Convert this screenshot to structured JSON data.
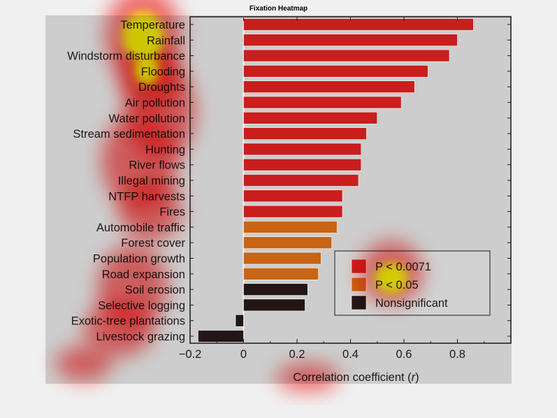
{
  "window": {
    "title": "Fixation Heatmap"
  },
  "chart_data": {
    "type": "bar",
    "orientation": "horizontal",
    "categories": [
      "Temperature",
      "Rainfall",
      "Windstorm disturbance",
      "Flooding",
      "Droughts",
      "Air pollution",
      "Water pollution",
      "Stream sedimentation",
      "Hunting",
      "River flows",
      "Illegal mining",
      "NTFP harvests",
      "Fires",
      "Automobile traffic",
      "Forest cover",
      "Population growth",
      "Road expansion",
      "Soil erosion",
      "Selective logging",
      "Exotic-tree plantations",
      "Livestock grazing"
    ],
    "values": [
      0.86,
      0.8,
      0.77,
      0.69,
      0.64,
      0.59,
      0.5,
      0.46,
      0.44,
      0.44,
      0.43,
      0.37,
      0.37,
      0.35,
      0.33,
      0.29,
      0.28,
      0.24,
      0.23,
      -0.03,
      -0.17
    ],
    "significance": [
      "p1",
      "p1",
      "p1",
      "p1",
      "p1",
      "p1",
      "p1",
      "p1",
      "p1",
      "p1",
      "p1",
      "p1",
      "p1",
      "p2",
      "p2",
      "p2",
      "p2",
      "ns",
      "ns",
      "ns",
      "ns"
    ],
    "xlabel": "Correlation coefficient (r)",
    "xlim": [
      -0.2,
      1.0
    ],
    "xticks": [
      -0.2,
      0,
      0.2,
      0.4,
      0.6,
      0.8
    ],
    "xtick_labels": [
      "−0.2",
      "0",
      "0.2",
      "0.4",
      "0.6",
      "0.8"
    ],
    "legend": {
      "placement": "lower-right",
      "entries": [
        {
          "key": "p1",
          "label": "P < 0.0071",
          "color": "#c81e1e"
        },
        {
          "key": "p2",
          "label": "P < 0.05",
          "color": "#c86414"
        },
        {
          "key": "ns",
          "label": "Nonsignificant",
          "color": "#231616"
        }
      ]
    },
    "grid": false
  },
  "heatmap": {
    "type": "fixation-overlay",
    "background": "#cdcdcd",
    "colors": [
      "#ff0000",
      "#ffff00"
    ]
  }
}
